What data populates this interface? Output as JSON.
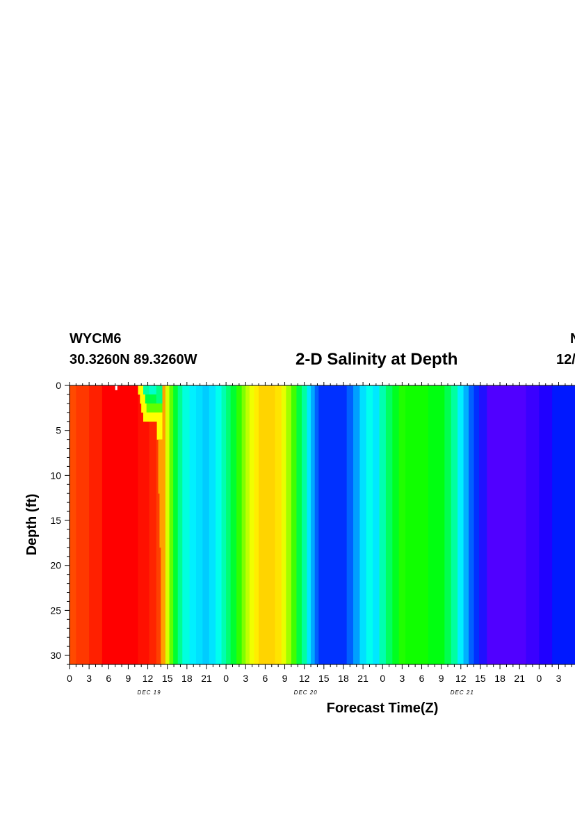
{
  "header": {
    "station": "WYCM6",
    "coords": "30.3260N 89.3260W",
    "right_line1": "N",
    "right_line2": "12/"
  },
  "chart_data": {
    "type": "heatmap",
    "title": "2-D Salinity at Depth",
    "xlabel": "Forecast Time(Z)",
    "ylabel": "Depth (ft)",
    "x_tick_labels": [
      "0",
      "3",
      "6",
      "9",
      "12",
      "15",
      "18",
      "21",
      "0",
      "3",
      "6",
      "9",
      "12",
      "15",
      "18",
      "21",
      "0",
      "3",
      "6",
      "9",
      "12",
      "15",
      "18",
      "21",
      "0",
      "3"
    ],
    "date_labels": [
      {
        "label": "DEC 19",
        "hour": 12
      },
      {
        "label": "DEC 20",
        "hour": 36
      },
      {
        "label": "DEC 21",
        "hour": 60
      }
    ],
    "y_ticks": [
      0,
      5,
      10,
      15,
      20,
      25,
      30
    ],
    "xlim_hours": [
      0,
      78
    ],
    "ylim_ft": [
      0,
      31
    ],
    "y_inverted": true,
    "color_bands": [
      {
        "h0": 0,
        "h1": 1,
        "color": "#ff4a00"
      },
      {
        "h0": 1,
        "h1": 3,
        "color": "#ff3800"
      },
      {
        "h0": 3,
        "h1": 5,
        "color": "#ff2000"
      },
      {
        "h0": 5,
        "h1": 10.5,
        "color": "#ff0000"
      },
      {
        "h0": 10.5,
        "h1": 12.2,
        "color": "#ff1000"
      },
      {
        "h0": 12.2,
        "h1": 13.3,
        "color": "#ff2400"
      },
      {
        "h0": 13.3,
        "h1": 14.2,
        "color": "#ff4000"
      },
      {
        "h0": 14.2,
        "h1": 14.7,
        "color": "#ffa000"
      },
      {
        "h0": 14.7,
        "h1": 15.3,
        "color": "#d8ff00"
      },
      {
        "h0": 15.3,
        "h1": 15.9,
        "color": "#60ff00"
      },
      {
        "h0": 15.9,
        "h1": 16.6,
        "color": "#00ff30"
      },
      {
        "h0": 16.6,
        "h1": 17.3,
        "color": "#00ff90"
      },
      {
        "h0": 17.3,
        "h1": 18.4,
        "color": "#00ffe0"
      },
      {
        "h0": 18.4,
        "h1": 19.4,
        "color": "#00f0ff"
      },
      {
        "h0": 19.4,
        "h1": 20.4,
        "color": "#00e0ff"
      },
      {
        "h0": 20.4,
        "h1": 21.4,
        "color": "#00ccff"
      },
      {
        "h0": 21.4,
        "h1": 22.4,
        "color": "#00e4ff"
      },
      {
        "h0": 22.4,
        "h1": 23.3,
        "color": "#00ffee"
      },
      {
        "h0": 23.3,
        "h1": 24.0,
        "color": "#00ffb0"
      },
      {
        "h0": 24.0,
        "h1": 24.7,
        "color": "#00ff70"
      },
      {
        "h0": 24.7,
        "h1": 25.6,
        "color": "#00ff30"
      },
      {
        "h0": 25.6,
        "h1": 26.4,
        "color": "#30ff00"
      },
      {
        "h0": 26.4,
        "h1": 27.0,
        "color": "#80ff00"
      },
      {
        "h0": 27.0,
        "h1": 27.6,
        "color": "#c0ff00"
      },
      {
        "h0": 27.6,
        "h1": 28.3,
        "color": "#f0ff00"
      },
      {
        "h0": 28.3,
        "h1": 29.0,
        "color": "#ffee00"
      },
      {
        "h0": 29.0,
        "h1": 31.5,
        "color": "#ffd400"
      },
      {
        "h0": 31.5,
        "h1": 32.5,
        "color": "#ffe400"
      },
      {
        "h0": 32.5,
        "h1": 33.2,
        "color": "#e8ff00"
      },
      {
        "h0": 33.2,
        "h1": 34.0,
        "color": "#a0ff00"
      },
      {
        "h0": 34.0,
        "h1": 34.8,
        "color": "#40ff00"
      },
      {
        "h0": 34.8,
        "h1": 35.6,
        "color": "#00ff40"
      },
      {
        "h0": 35.6,
        "h1": 36.4,
        "color": "#00ffa0"
      },
      {
        "h0": 36.4,
        "h1": 37.0,
        "color": "#00e8ff"
      },
      {
        "h0": 37.0,
        "h1": 37.6,
        "color": "#00a8ff"
      },
      {
        "h0": 37.6,
        "h1": 38.2,
        "color": "#0060ff"
      },
      {
        "h0": 38.2,
        "h1": 42.5,
        "color": "#0030ff"
      },
      {
        "h0": 42.5,
        "h1": 43.5,
        "color": "#0060ff"
      },
      {
        "h0": 43.5,
        "h1": 44.5,
        "color": "#00a0ff"
      },
      {
        "h0": 44.5,
        "h1": 45.5,
        "color": "#00e0ff"
      },
      {
        "h0": 45.5,
        "h1": 46.5,
        "color": "#00ffee"
      },
      {
        "h0": 46.5,
        "h1": 47.5,
        "color": "#00e8ff"
      },
      {
        "h0": 47.5,
        "h1": 48.5,
        "color": "#00ffb0"
      },
      {
        "h0": 48.5,
        "h1": 49.5,
        "color": "#00ff60"
      },
      {
        "h0": 49.5,
        "h1": 50.5,
        "color": "#00ff20"
      },
      {
        "h0": 50.5,
        "h1": 51.5,
        "color": "#20ff00"
      },
      {
        "h0": 51.5,
        "h1": 55.0,
        "color": "#10ff00"
      },
      {
        "h0": 55.0,
        "h1": 57.5,
        "color": "#00ff10"
      },
      {
        "h0": 57.5,
        "h1": 58.5,
        "color": "#00ff50"
      },
      {
        "h0": 58.5,
        "h1": 59.5,
        "color": "#00ffa0"
      },
      {
        "h0": 59.5,
        "h1": 60.4,
        "color": "#00f0ff"
      },
      {
        "h0": 60.4,
        "h1": 61.2,
        "color": "#00b0ff"
      },
      {
        "h0": 61.2,
        "h1": 62.0,
        "color": "#0060ff"
      },
      {
        "h0": 62.0,
        "h1": 62.8,
        "color": "#0030ff"
      },
      {
        "h0": 62.8,
        "h1": 64.0,
        "color": "#2010ff"
      },
      {
        "h0": 64.0,
        "h1": 70.0,
        "color": "#5000ff"
      },
      {
        "h0": 70.0,
        "h1": 72.0,
        "color": "#3a00ff"
      },
      {
        "h0": 72.0,
        "h1": 74.0,
        "color": "#2000ff"
      },
      {
        "h0": 74.0,
        "h1": 78.0,
        "color": "#0018ff"
      }
    ],
    "overlay_cells": [
      {
        "h0": 10.5,
        "h1": 11.3,
        "d0": 0,
        "d1": 1,
        "color": "#ffff00"
      },
      {
        "h0": 11.3,
        "h1": 12.2,
        "d0": 0,
        "d1": 1,
        "color": "#00ffa0"
      },
      {
        "h0": 12.2,
        "h1": 13.3,
        "d0": 0,
        "d1": 1,
        "color": "#00ffcc"
      },
      {
        "h0": 13.3,
        "h1": 14.2,
        "d0": 0,
        "d1": 1,
        "color": "#00ff80"
      },
      {
        "h0": 10.8,
        "h1": 11.6,
        "d0": 1,
        "d1": 2,
        "color": "#ffff00"
      },
      {
        "h0": 11.6,
        "h1": 13.3,
        "d0": 1,
        "d1": 2,
        "color": "#00ff40"
      },
      {
        "h0": 13.3,
        "h1": 14.2,
        "d0": 1,
        "d1": 2,
        "color": "#00ff80"
      },
      {
        "h0": 11.0,
        "h1": 11.8,
        "d0": 2,
        "d1": 3,
        "color": "#ffff00"
      },
      {
        "h0": 11.8,
        "h1": 14.2,
        "d0": 2,
        "d1": 3,
        "color": "#60ff00"
      },
      {
        "h0": 11.3,
        "h1": 14.2,
        "d0": 3,
        "d1": 4,
        "color": "#ffff00"
      },
      {
        "h0": 13.4,
        "h1": 14.2,
        "d0": 4,
        "d1": 6,
        "color": "#ffff00"
      },
      {
        "h0": 13.6,
        "h1": 14.2,
        "d0": 6,
        "d1": 12,
        "color": "#ffa000"
      },
      {
        "h0": 13.8,
        "h1": 14.4,
        "d0": 12,
        "d1": 18,
        "color": "#ffa000"
      },
      {
        "h0": 14.0,
        "h1": 14.6,
        "d0": 18,
        "d1": 31,
        "color": "#ffa000"
      },
      {
        "h0": 7.0,
        "h1": 7.3,
        "d0": 0,
        "d1": 0.5,
        "color": "#ffffff"
      }
    ]
  }
}
